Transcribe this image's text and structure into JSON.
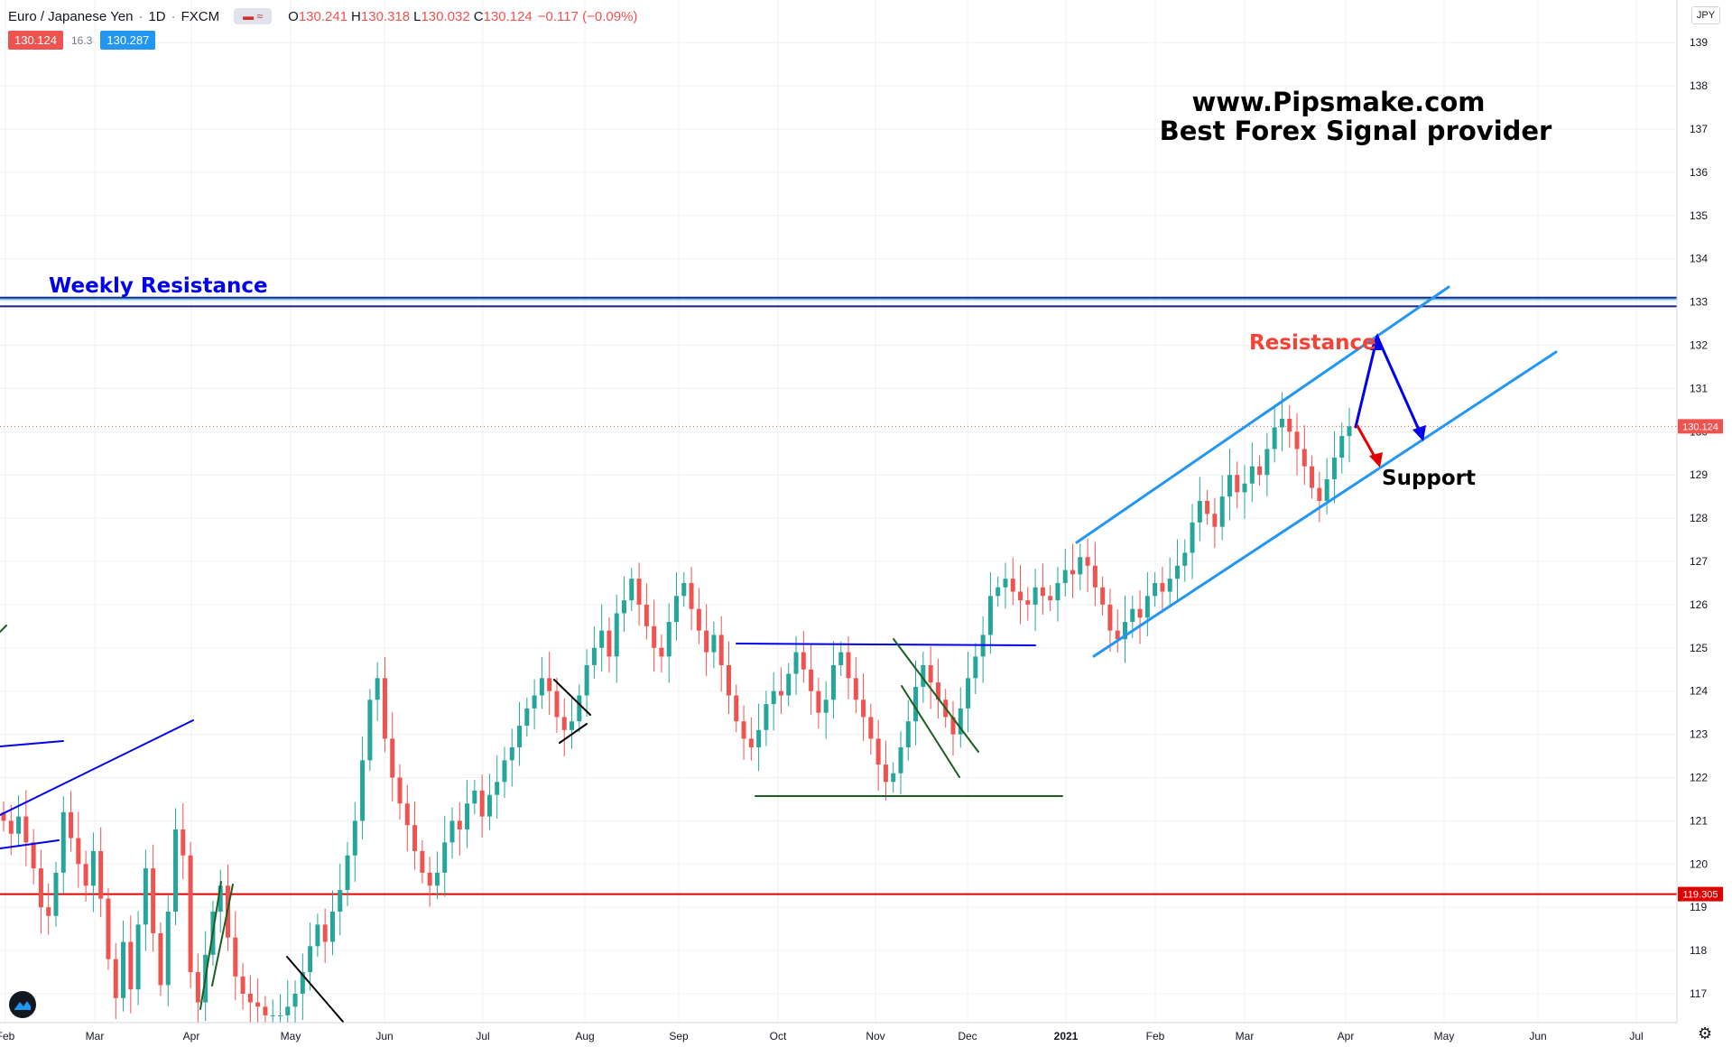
{
  "header": {
    "symbol": "Euro / Japanese Yen",
    "interval": "1D",
    "exchange": "FXCM",
    "toggle_icon": "compare-toggle-icon",
    "o_label": "O",
    "o": "130.241",
    "h_label": "H",
    "h": "130.318",
    "l_label": "L",
    "l": "130.032",
    "c_label": "C",
    "c": "130.124",
    "change": "−0.117 (−0.09%)"
  },
  "quote": {
    "bid": "130.124",
    "spread": "16.3",
    "ask": "130.287"
  },
  "currency_button": "JPY",
  "watermark": {
    "line1": "www.Pipsmake.com",
    "line2": "Best Forex Signal provider"
  },
  "annotations": {
    "weekly_resistance": "Weekly Resistance",
    "resistance": "Resistance",
    "support": "Support"
  },
  "colors": {
    "up": "#26a69a",
    "down": "#ef5350",
    "channel": "#2196f3",
    "dark_blue": "#0000ee",
    "green_line": "#1b5e20",
    "red_level": "#e00000",
    "weekly": "#1a237e"
  },
  "chart_data": {
    "type": "candlestick",
    "symbol": "EURJPY",
    "y_axis": {
      "ticks": [
        117,
        118,
        119,
        120,
        121,
        122,
        123,
        124,
        125,
        126,
        127,
        128,
        129,
        130,
        131,
        132,
        133,
        134,
        135,
        136,
        137,
        138,
        139
      ],
      "range": [
        116.3,
        139.7
      ]
    },
    "x_axis": {
      "ticks": [
        "Feb",
        "Mar",
        "Apr",
        "May",
        "Jun",
        "Jul",
        "Aug",
        "Sep",
        "Oct",
        "Nov",
        "Dec",
        "2021",
        "Feb",
        "Mar",
        "Apr",
        "May",
        "Jun",
        "Jul"
      ]
    },
    "last_price": 130.124,
    "price_labels": [
      {
        "value": "130.124",
        "color": "#ef5350"
      },
      {
        "value": "119.305",
        "color": "#e00000"
      }
    ],
    "levels": {
      "weekly_resistance": [
        133.1,
        132.9
      ],
      "horizontal_support": 119.305
    },
    "closes": [
      121.0,
      120.7,
      121.1,
      120.5,
      119.9,
      119.0,
      118.8,
      119.8,
      121.2,
      120.6,
      120.0,
      119.5,
      120.3,
      119.2,
      117.8,
      116.9,
      118.2,
      117.1,
      118.6,
      119.9,
      118.4,
      117.2,
      118.9,
      120.8,
      120.2,
      117.5,
      116.8,
      117.9,
      118.9,
      119.5,
      118.3,
      117.4,
      117.0,
      116.8,
      116.7,
      116.5,
      116.5,
      116.5,
      116.7,
      117.0,
      117.5,
      118.1,
      118.6,
      118.2,
      118.9,
      119.4,
      120.2,
      121.0,
      122.4,
      123.8,
      124.3,
      122.9,
      122.0,
      121.4,
      120.9,
      120.3,
      119.8,
      119.5,
      119.8,
      120.5,
      121.0,
      120.8,
      121.4,
      121.7,
      121.1,
      121.6,
      121.9,
      122.4,
      122.7,
      123.2,
      123.6,
      123.9,
      124.3,
      124.0,
      123.4,
      123.1,
      123.3,
      123.9,
      124.6,
      125.0,
      125.4,
      124.8,
      125.8,
      126.1,
      126.6,
      126.0,
      125.5,
      125.0,
      124.8,
      125.6,
      126.2,
      126.5,
      125.9,
      125.4,
      124.9,
      125.3,
      124.6,
      123.9,
      123.3,
      122.9,
      122.7,
      123.1,
      123.7,
      124.0,
      123.9,
      124.4,
      124.9,
      124.5,
      124.0,
      123.5,
      123.8,
      124.6,
      124.9,
      124.3,
      123.8,
      123.4,
      122.9,
      122.3,
      121.9,
      122.1,
      122.7,
      123.3,
      124.1,
      124.6,
      124.2,
      123.8,
      123.4,
      123.0,
      123.6,
      124.3,
      124.8,
      125.3,
      126.2,
      126.4,
      126.6,
      126.3,
      126.1,
      126.0,
      126.4,
      126.2,
      126.1,
      126.5,
      126.8,
      126.7,
      127.1,
      126.9,
      126.4,
      126.0,
      125.4,
      125.2,
      125.6,
      125.9,
      125.7,
      126.2,
      126.5,
      126.3,
      126.6,
      126.9,
      127.2,
      127.9,
      128.4,
      128.1,
      127.8,
      128.5,
      129.0,
      128.6,
      128.8,
      129.2,
      129.0,
      129.6,
      130.1,
      130.3,
      130.0,
      129.6,
      129.2,
      128.7,
      128.4,
      128.9,
      129.4,
      129.9,
      130.124
    ],
    "drawings": [
      {
        "kind": "ascending_channel_upper"
      },
      {
        "kind": "ascending_channel_lower"
      },
      {
        "kind": "projection_up_then_down"
      },
      {
        "kind": "projection_down"
      }
    ]
  }
}
